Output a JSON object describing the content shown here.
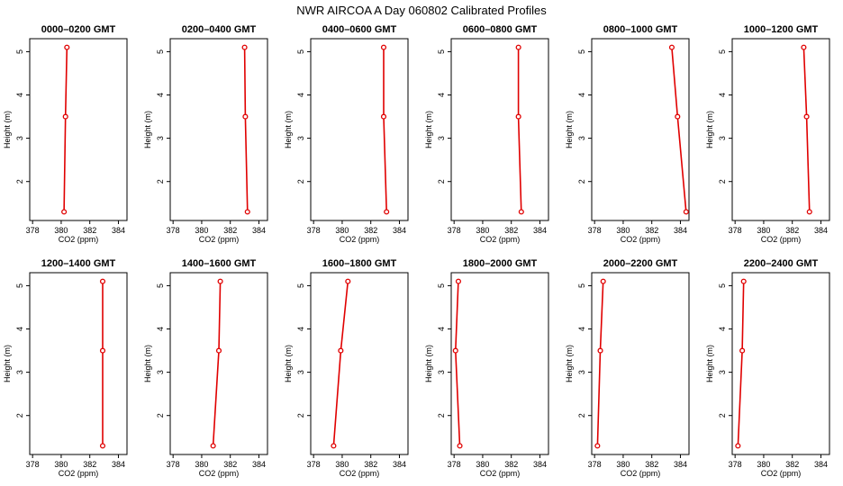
{
  "figure": {
    "title": "NWR AIRCOA A  Day 060802  Calibrated Profiles"
  },
  "chart_data": {
    "type": "line",
    "xlabel": "CO2 (ppm)",
    "ylabel": "Height (m)",
    "xlim": [
      377.8,
      384.6
    ],
    "ylim": [
      1.1,
      5.3
    ],
    "xticks": [
      378,
      380,
      382,
      384
    ],
    "yticks": [
      2,
      3,
      4,
      5
    ],
    "line_color": "#e00000",
    "grid": false,
    "panels": [
      {
        "title": "0000–0200 GMT",
        "points": [
          {
            "x": 380.4,
            "y": 5.1
          },
          {
            "x": 380.3,
            "y": 3.5
          },
          {
            "x": 380.2,
            "y": 1.3
          }
        ]
      },
      {
        "title": "0200–0400 GMT",
        "points": [
          {
            "x": 383.0,
            "y": 5.1
          },
          {
            "x": 383.05,
            "y": 3.5
          },
          {
            "x": 383.2,
            "y": 1.3
          }
        ]
      },
      {
        "title": "0400–0600 GMT",
        "points": [
          {
            "x": 382.9,
            "y": 5.1
          },
          {
            "x": 382.9,
            "y": 3.5
          },
          {
            "x": 383.1,
            "y": 1.3
          }
        ]
      },
      {
        "title": "0600–0800 GMT",
        "points": [
          {
            "x": 382.5,
            "y": 5.1
          },
          {
            "x": 382.5,
            "y": 3.5
          },
          {
            "x": 382.7,
            "y": 1.3
          }
        ]
      },
      {
        "title": "0800–1000 GMT",
        "points": [
          {
            "x": 383.4,
            "y": 5.1
          },
          {
            "x": 383.8,
            "y": 3.5
          },
          {
            "x": 384.4,
            "y": 1.3
          }
        ]
      },
      {
        "title": "1000–1200 GMT",
        "points": [
          {
            "x": 382.8,
            "y": 5.1
          },
          {
            "x": 383.0,
            "y": 3.5
          },
          {
            "x": 383.2,
            "y": 1.3
          }
        ]
      },
      {
        "title": "1200–1400 GMT",
        "points": [
          {
            "x": 382.9,
            "y": 5.1
          },
          {
            "x": 382.9,
            "y": 3.5
          },
          {
            "x": 382.9,
            "y": 1.3
          }
        ]
      },
      {
        "title": "1400–1600 GMT",
        "points": [
          {
            "x": 381.3,
            "y": 5.1
          },
          {
            "x": 381.2,
            "y": 3.5
          },
          {
            "x": 380.8,
            "y": 1.3
          }
        ]
      },
      {
        "title": "1600–1800 GMT",
        "points": [
          {
            "x": 380.4,
            "y": 5.1
          },
          {
            "x": 379.9,
            "y": 3.5
          },
          {
            "x": 379.4,
            "y": 1.3
          }
        ]
      },
      {
        "title": "1800–2000 GMT",
        "points": [
          {
            "x": 378.3,
            "y": 5.1
          },
          {
            "x": 378.1,
            "y": 3.5
          },
          {
            "x": 378.4,
            "y": 1.3
          }
        ]
      },
      {
        "title": "2000–2200 GMT",
        "points": [
          {
            "x": 378.6,
            "y": 5.1
          },
          {
            "x": 378.4,
            "y": 3.5
          },
          {
            "x": 378.2,
            "y": 1.3
          }
        ]
      },
      {
        "title": "2200–2400 GMT",
        "points": [
          {
            "x": 378.6,
            "y": 5.1
          },
          {
            "x": 378.5,
            "y": 3.5
          },
          {
            "x": 378.2,
            "y": 1.3
          }
        ]
      }
    ]
  }
}
